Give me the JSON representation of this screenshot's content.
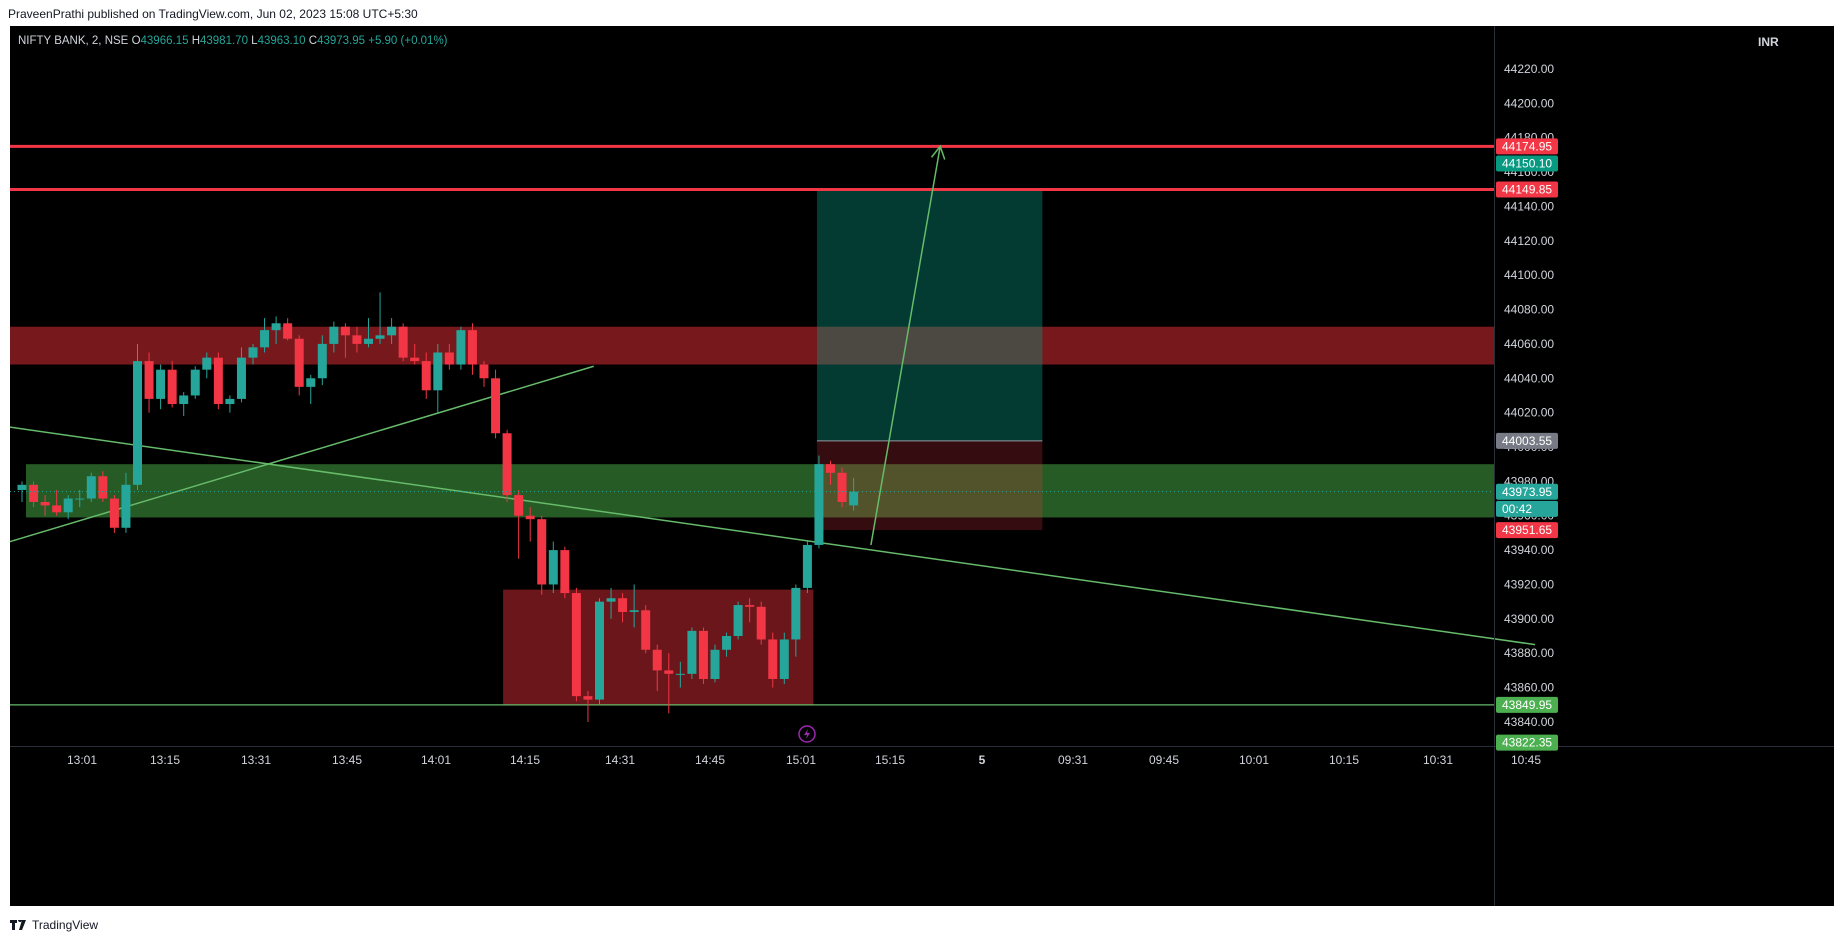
{
  "publish_line": "PraveenPrathi published on TradingView.com, Jun 02, 2023 15:08 UTC+5:30",
  "footer_brand": "TradingView",
  "legend": {
    "symbol": "NIFTY BANK, 2, NSE",
    "o_label": "O",
    "o": "43966.15",
    "h_label": "H",
    "h": "43981.70",
    "l_label": "L",
    "l": "43963.10",
    "c_label": "C",
    "c": "43973.95",
    "change": "+5.90 (+0.01%)"
  },
  "currency": "INR",
  "colors": {
    "background": "#000000",
    "up": "#26a69a",
    "down": "#f23645",
    "grid_text": "#d1d4dc",
    "trendline": "#66bb6a"
  },
  "chart_data": {
    "type": "candlestick",
    "symbol": "NIFTY BANK",
    "interval": "2",
    "exchange": "NSE",
    "ylim": [
      43826,
      44245
    ],
    "y_ticks": [
      "44220.00",
      "44200.00",
      "44180.00",
      "44160.00",
      "44140.00",
      "44120.00",
      "44100.00",
      "44080.00",
      "44060.00",
      "44040.00",
      "44020.00",
      "44000.00",
      "43980.00",
      "43960.00",
      "43940.00",
      "43920.00",
      "43900.00",
      "43880.00",
      "43860.00",
      "43840.00"
    ],
    "x_ticks": [
      "13:01",
      "13:15",
      "13:31",
      "13:45",
      "14:01",
      "14:15",
      "14:31",
      "14:45",
      "15:01",
      "15:15",
      "5",
      "09:31",
      "09:45",
      "10:01",
      "10:15",
      "10:31",
      "10:45"
    ],
    "candles": [
      {
        "o": 43975,
        "h": 43980,
        "l": 43968,
        "c": 43978
      },
      {
        "o": 43978,
        "h": 43980,
        "l": 43965,
        "c": 43968
      },
      {
        "o": 43968,
        "h": 43972,
        "l": 43960,
        "c": 43966
      },
      {
        "o": 43966,
        "h": 43975,
        "l": 43960,
        "c": 43962
      },
      {
        "o": 43962,
        "h": 43972,
        "l": 43958,
        "c": 43970
      },
      {
        "o": 43970,
        "h": 43975,
        "l": 43965,
        "c": 43970
      },
      {
        "o": 43970,
        "h": 43985,
        "l": 43968,
        "c": 43983
      },
      {
        "o": 43983,
        "h": 43986,
        "l": 43968,
        "c": 43970
      },
      {
        "o": 43970,
        "h": 43972,
        "l": 43950,
        "c": 43953
      },
      {
        "o": 43953,
        "h": 43985,
        "l": 43950,
        "c": 43978
      },
      {
        "o": 43978,
        "h": 44060,
        "l": 43975,
        "c": 44050
      },
      {
        "o": 44050,
        "h": 44055,
        "l": 44020,
        "c": 44028
      },
      {
        "o": 44028,
        "h": 44048,
        "l": 44022,
        "c": 44045
      },
      {
        "o": 44045,
        "h": 44050,
        "l": 44023,
        "c": 44025
      },
      {
        "o": 44025,
        "h": 44032,
        "l": 44018,
        "c": 44030
      },
      {
        "o": 44030,
        "h": 44047,
        "l": 44028,
        "c": 44045
      },
      {
        "o": 44045,
        "h": 44055,
        "l": 44040,
        "c": 44052
      },
      {
        "o": 44052,
        "h": 44055,
        "l": 44022,
        "c": 44025
      },
      {
        "o": 44025,
        "h": 44030,
        "l": 44020,
        "c": 44028
      },
      {
        "o": 44028,
        "h": 44058,
        "l": 44026,
        "c": 44052
      },
      {
        "o": 44052,
        "h": 44060,
        "l": 44048,
        "c": 44058
      },
      {
        "o": 44058,
        "h": 44075,
        "l": 44055,
        "c": 44068
      },
      {
        "o": 44068,
        "h": 44076,
        "l": 44060,
        "c": 44072
      },
      {
        "o": 44072,
        "h": 44075,
        "l": 44062,
        "c": 44063
      },
      {
        "o": 44063,
        "h": 44065,
        "l": 44030,
        "c": 44035
      },
      {
        "o": 44035,
        "h": 44042,
        "l": 44025,
        "c": 44040
      },
      {
        "o": 44040,
        "h": 44065,
        "l": 44036,
        "c": 44060
      },
      {
        "o": 44060,
        "h": 44073,
        "l": 44055,
        "c": 44070
      },
      {
        "o": 44070,
        "h": 44072,
        "l": 44052,
        "c": 44065
      },
      {
        "o": 44065,
        "h": 44070,
        "l": 44055,
        "c": 44060
      },
      {
        "o": 44060,
        "h": 44075,
        "l": 44058,
        "c": 44063
      },
      {
        "o": 44063,
        "h": 44090,
        "l": 44060,
        "c": 44065
      },
      {
        "o": 44065,
        "h": 44075,
        "l": 44060,
        "c": 44070
      },
      {
        "o": 44070,
        "h": 44072,
        "l": 44050,
        "c": 44052
      },
      {
        "o": 44052,
        "h": 44060,
        "l": 44048,
        "c": 44050
      },
      {
        "o": 44050,
        "h": 44055,
        "l": 44028,
        "c": 44033
      },
      {
        "o": 44033,
        "h": 44060,
        "l": 44020,
        "c": 44055
      },
      {
        "o": 44055,
        "h": 44060,
        "l": 44045,
        "c": 44048
      },
      {
        "o": 44048,
        "h": 44070,
        "l": 44045,
        "c": 44068
      },
      {
        "o": 44068,
        "h": 44072,
        "l": 44042,
        "c": 44048
      },
      {
        "o": 44048,
        "h": 44050,
        "l": 44035,
        "c": 44040
      },
      {
        "o": 44040,
        "h": 44045,
        "l": 44005,
        "c": 44008
      },
      {
        "o": 44008,
        "h": 44010,
        "l": 43968,
        "c": 43972
      },
      {
        "o": 43972,
        "h": 43975,
        "l": 43935,
        "c": 43960
      },
      {
        "o": 43960,
        "h": 43965,
        "l": 43945,
        "c": 43958
      },
      {
        "o": 43958,
        "h": 43960,
        "l": 43914,
        "c": 43920
      },
      {
        "o": 43920,
        "h": 43945,
        "l": 43915,
        "c": 43940
      },
      {
        "o": 43940,
        "h": 43942,
        "l": 43912,
        "c": 43915
      },
      {
        "o": 43915,
        "h": 43918,
        "l": 43852,
        "c": 43855
      },
      {
        "o": 43855,
        "h": 43858,
        "l": 43840,
        "c": 43853
      },
      {
        "o": 43853,
        "h": 43912,
        "l": 43850,
        "c": 43910
      },
      {
        "o": 43910,
        "h": 43918,
        "l": 43900,
        "c": 43912
      },
      {
        "o": 43912,
        "h": 43915,
        "l": 43898,
        "c": 43904
      },
      {
        "o": 43904,
        "h": 43920,
        "l": 43895,
        "c": 43905
      },
      {
        "o": 43905,
        "h": 43908,
        "l": 43880,
        "c": 43882
      },
      {
        "o": 43882,
        "h": 43885,
        "l": 43858,
        "c": 43870
      },
      {
        "o": 43870,
        "h": 43880,
        "l": 43845,
        "c": 43868
      },
      {
        "o": 43868,
        "h": 43875,
        "l": 43860,
        "c": 43868
      },
      {
        "o": 43868,
        "h": 43895,
        "l": 43865,
        "c": 43893
      },
      {
        "o": 43893,
        "h": 43895,
        "l": 43862,
        "c": 43865
      },
      {
        "o": 43865,
        "h": 43885,
        "l": 43863,
        "c": 43882
      },
      {
        "o": 43882,
        "h": 43892,
        "l": 43878,
        "c": 43890
      },
      {
        "o": 43890,
        "h": 43910,
        "l": 43888,
        "c": 43908
      },
      {
        "o": 43908,
        "h": 43912,
        "l": 43898,
        "c": 43907
      },
      {
        "o": 43907,
        "h": 43910,
        "l": 43885,
        "c": 43888
      },
      {
        "o": 43888,
        "h": 43892,
        "l": 43860,
        "c": 43865
      },
      {
        "o": 43865,
        "h": 43892,
        "l": 43862,
        "c": 43888
      },
      {
        "o": 43888,
        "h": 43920,
        "l": 43878,
        "c": 43918
      },
      {
        "o": 43918,
        "h": 43945,
        "l": 43915,
        "c": 43943
      },
      {
        "o": 43943,
        "h": 43995,
        "l": 43941,
        "c": 43990
      },
      {
        "o": 43990,
        "h": 43992,
        "l": 43978,
        "c": 43985
      },
      {
        "o": 43985,
        "h": 43988,
        "l": 43965,
        "c": 43968
      },
      {
        "o": 43966,
        "h": 43982,
        "l": 43963,
        "c": 43974
      }
    ],
    "zones": [
      {
        "name": "resistance",
        "y_top": 44070,
        "y_bottom": 44048,
        "color": "#8c1c21"
      },
      {
        "name": "support",
        "y_top": 43990,
        "y_bottom": 43959,
        "color": "#2e6b2c"
      },
      {
        "name": "demand",
        "y_top": 43917,
        "y_bottom": 43850,
        "color": "#7d1a1e"
      }
    ],
    "horizontal_lines": [
      {
        "y": 44174.95,
        "color": "#f23645"
      },
      {
        "y": 44149.85,
        "color": "#f23645"
      },
      {
        "y": 43849.95,
        "color": "#66bb6a"
      }
    ],
    "position": {
      "entry": 44003.55,
      "target": 44150.1,
      "stop": 43951.65
    },
    "price_labels": [
      {
        "text": "44174.95",
        "y": 44174.95,
        "color": "#f23645"
      },
      {
        "text": "44150.10",
        "y": 44165,
        "color": "#089981"
      },
      {
        "text": "44149.85",
        "y": 44149.85,
        "color": "#f23645"
      },
      {
        "text": "44003.55",
        "y": 44003.55,
        "color": "#787b86"
      },
      {
        "text": "43973.95",
        "y": 43973.95,
        "color": "#26a69a"
      },
      {
        "text": "00:42",
        "y": 43964,
        "color": "#26a69a"
      },
      {
        "text": "43951.65",
        "y": 43951.65,
        "color": "#f23645"
      },
      {
        "text": "43849.95",
        "y": 43849.95,
        "color": "#4caf50"
      },
      {
        "text": "43822.35",
        "y": 43828,
        "color": "#4caf50"
      }
    ],
    "trendlines": [
      {
        "x1": -1.5,
        "y1": 43944,
        "x2": 49.5,
        "y2": 44047
      },
      {
        "x1": -1.5,
        "y1": 44012,
        "x2": 131,
        "y2": 43885
      }
    ],
    "arrow": {
      "x1": 73.5,
      "y1": 43943,
      "x2": 79.5,
      "y2": 44175
    }
  }
}
